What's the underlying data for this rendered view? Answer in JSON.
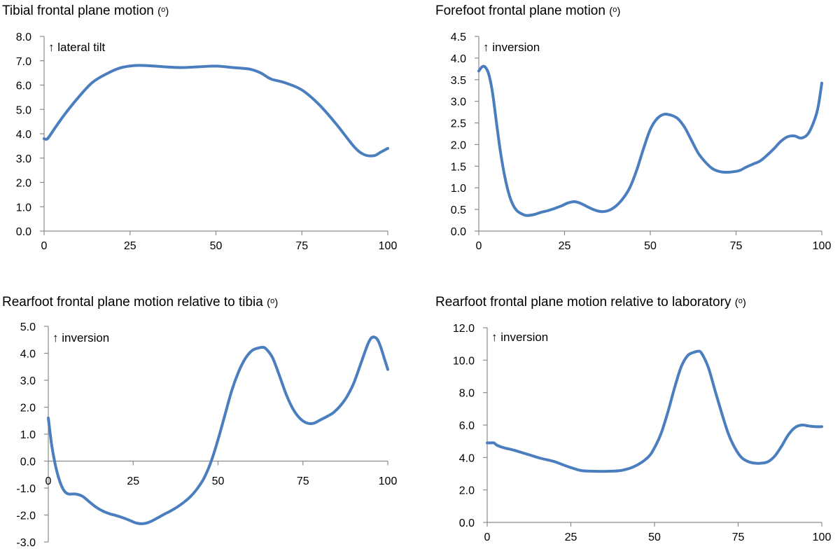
{
  "chart_data": [
    {
      "type": "line",
      "title": "Tibial frontal plane motion",
      "unit": "(o)",
      "annotation": "↑ lateral tilt",
      "xlim": [
        0,
        100
      ],
      "ylim": [
        0,
        8
      ],
      "x_ticks": [
        "0",
        "25",
        "50",
        "75",
        "100"
      ],
      "y_ticks": [
        "0.0",
        "1.0",
        "2.0",
        "3.0",
        "4.0",
        "5.0",
        "6.0",
        "7.0",
        "8.0"
      ],
      "grid": false,
      "series": [
        {
          "x": [
            0,
            1,
            3,
            6,
            10,
            14,
            18,
            22,
            26,
            30,
            35,
            40,
            45,
            50,
            55,
            60,
            63,
            66,
            70,
            75,
            80,
            85,
            90,
            93,
            96,
            98,
            100
          ],
          "y": [
            3.8,
            3.8,
            4.2,
            4.8,
            5.5,
            6.1,
            6.45,
            6.7,
            6.8,
            6.8,
            6.75,
            6.72,
            6.75,
            6.78,
            6.72,
            6.65,
            6.5,
            6.25,
            6.1,
            5.8,
            5.2,
            4.4,
            3.5,
            3.15,
            3.1,
            3.25,
            3.4
          ]
        }
      ]
    },
    {
      "type": "line",
      "title": "Forefoot frontal plane motion",
      "unit": "(o)",
      "annotation": "↑ inversion",
      "xlim": [
        0,
        100
      ],
      "ylim": [
        0,
        4.5
      ],
      "x_ticks": [
        "0",
        "25",
        "50",
        "75",
        "100"
      ],
      "y_ticks": [
        "0.0",
        "0.5",
        "1.0",
        "1.5",
        "2.0",
        "2.5",
        "3.0",
        "3.5",
        "4.0",
        "4.5"
      ],
      "grid": false,
      "series": [
        {
          "x": [
            0,
            1,
            2,
            3,
            4,
            5,
            6,
            7,
            8,
            9,
            10,
            11,
            12,
            13,
            14,
            16,
            18,
            20,
            22,
            24,
            26,
            28,
            30,
            32,
            34,
            36,
            38,
            40,
            42,
            44,
            46,
            48,
            50,
            52,
            54,
            56,
            58,
            60,
            62,
            64,
            66,
            68,
            70,
            72,
            74,
            76,
            78,
            80,
            82,
            84,
            86,
            88,
            90,
            92,
            94,
            96,
            98,
            99,
            100
          ],
          "y": [
            3.7,
            3.8,
            3.78,
            3.6,
            3.2,
            2.6,
            2.0,
            1.5,
            1.1,
            0.8,
            0.6,
            0.48,
            0.42,
            0.38,
            0.36,
            0.38,
            0.43,
            0.47,
            0.52,
            0.58,
            0.65,
            0.68,
            0.63,
            0.55,
            0.48,
            0.45,
            0.48,
            0.58,
            0.75,
            1.0,
            1.4,
            1.9,
            2.35,
            2.6,
            2.7,
            2.68,
            2.6,
            2.4,
            2.1,
            1.8,
            1.6,
            1.45,
            1.38,
            1.36,
            1.37,
            1.4,
            1.48,
            1.55,
            1.62,
            1.75,
            1.9,
            2.07,
            2.18,
            2.2,
            2.15,
            2.25,
            2.6,
            2.9,
            3.42
          ]
        }
      ]
    },
    {
      "type": "line",
      "title": "Rearfoot frontal plane motion relative to tibia",
      "unit": "(o)",
      "annotation": "↑ inversion",
      "xlim": [
        0,
        100
      ],
      "ylim": [
        -3,
        5
      ],
      "x_ticks": [
        "0",
        "25",
        "50",
        "75",
        "100"
      ],
      "y_ticks": [
        "-3.0",
        "-2.0",
        "-1.0",
        "0.0",
        "1.0",
        "2.0",
        "3.0",
        "4.0",
        "5.0"
      ],
      "grid": false,
      "series": [
        {
          "x": [
            0,
            1,
            2,
            3,
            4,
            5,
            6,
            8,
            10,
            12,
            14,
            16,
            18,
            20,
            22,
            24,
            26,
            28,
            30,
            32,
            34,
            36,
            38,
            40,
            42,
            44,
            46,
            48,
            50,
            52,
            54,
            56,
            58,
            60,
            62,
            63,
            64,
            66,
            68,
            70,
            72,
            74,
            76,
            78,
            80,
            82,
            84,
            86,
            88,
            90,
            92,
            94,
            95,
            96,
            97,
            98,
            99,
            100
          ],
          "y": [
            1.6,
            0.6,
            -0.1,
            -0.6,
            -0.95,
            -1.15,
            -1.22,
            -1.22,
            -1.3,
            -1.5,
            -1.7,
            -1.85,
            -1.95,
            -2.02,
            -2.1,
            -2.2,
            -2.3,
            -2.32,
            -2.25,
            -2.12,
            -1.98,
            -1.85,
            -1.7,
            -1.52,
            -1.3,
            -1.0,
            -0.6,
            0.0,
            0.8,
            1.7,
            2.6,
            3.3,
            3.8,
            4.1,
            4.2,
            4.22,
            4.18,
            3.85,
            3.2,
            2.5,
            1.95,
            1.6,
            1.42,
            1.4,
            1.52,
            1.65,
            1.8,
            2.05,
            2.4,
            2.9,
            3.6,
            4.3,
            4.55,
            4.6,
            4.5,
            4.2,
            3.8,
            3.4
          ]
        }
      ]
    },
    {
      "type": "line",
      "title": "Rearfoot frontal plane motion relative to laboratory",
      "unit": "(o)",
      "annotation": "↑ inversion",
      "xlim": [
        0,
        100
      ],
      "ylim": [
        0,
        12
      ],
      "x_ticks": [
        "0",
        "25",
        "50",
        "75",
        "100"
      ],
      "y_ticks": [
        "0.0",
        "2.0",
        "4.0",
        "6.0",
        "8.0",
        "10.0",
        "12.0"
      ],
      "grid": false,
      "series": [
        {
          "x": [
            0,
            1,
            2,
            3,
            5,
            8,
            12,
            16,
            20,
            24,
            28,
            32,
            36,
            40,
            44,
            48,
            50,
            52,
            54,
            56,
            58,
            60,
            62,
            63,
            64,
            66,
            68,
            70,
            72,
            74,
            76,
            78,
            80,
            82,
            84,
            86,
            88,
            90,
            92,
            94,
            96,
            98,
            100
          ],
          "y": [
            4.9,
            4.9,
            4.9,
            4.75,
            4.6,
            4.45,
            4.2,
            3.95,
            3.75,
            3.45,
            3.2,
            3.15,
            3.15,
            3.2,
            3.45,
            4.0,
            4.6,
            5.5,
            6.8,
            8.3,
            9.6,
            10.3,
            10.5,
            10.55,
            10.45,
            9.6,
            8.2,
            6.8,
            5.5,
            4.6,
            4.0,
            3.75,
            3.65,
            3.65,
            3.75,
            4.1,
            4.7,
            5.4,
            5.85,
            6.0,
            5.95,
            5.9,
            5.9
          ]
        }
      ]
    }
  ]
}
